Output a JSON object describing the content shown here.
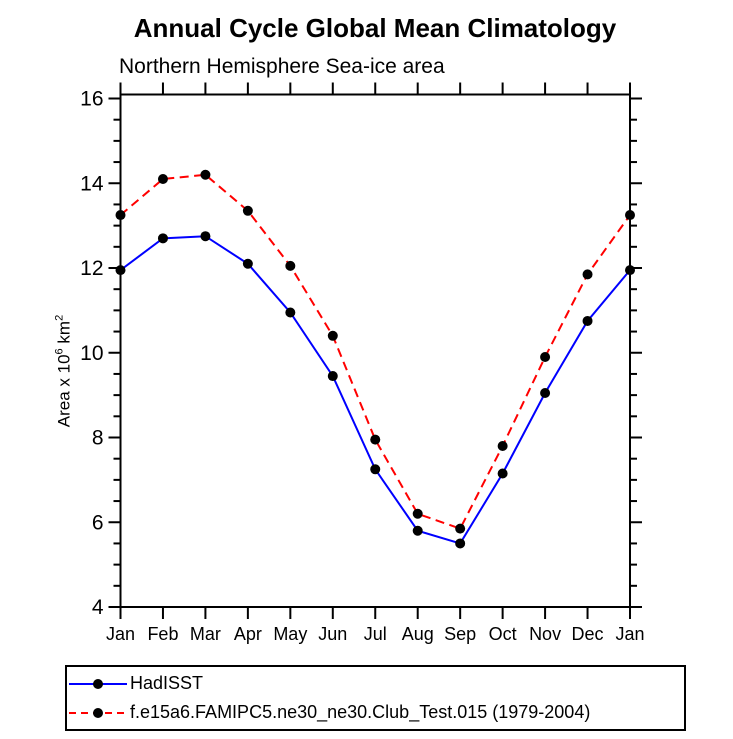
{
  "page": {
    "background_color": "#ffffff",
    "frame_color": "#000000"
  },
  "chart_data": {
    "type": "line",
    "title": "Annual Cycle Global Mean Climatology",
    "subtitle": "Northern Hemisphere Sea-ice area",
    "ylabel": "Area x 10^6 km^2",
    "ylabel_parts": {
      "base": "Area x 10",
      "exp": "6",
      "unit": " km",
      "unit_exp": "2"
    },
    "categories": [
      "Jan",
      "Feb",
      "Mar",
      "Apr",
      "May",
      "Jun",
      "Jul",
      "Aug",
      "Sep",
      "Oct",
      "Nov",
      "Dec",
      "Jan"
    ],
    "yticks": [
      4,
      6,
      8,
      10,
      12,
      14,
      16
    ],
    "ylim": [
      4,
      16
    ],
    "y_minor_step": 0.5,
    "grid": false,
    "legend_position": "bottom-left-box",
    "series": [
      {
        "name": "HadISST",
        "color": "#0000ff",
        "line_style": "solid",
        "marker": "filled-circle",
        "marker_color": "#000000",
        "values": [
          11.95,
          12.7,
          12.75,
          12.1,
          10.95,
          9.45,
          7.25,
          5.8,
          5.5,
          7.15,
          9.05,
          10.75,
          11.95
        ]
      },
      {
        "name": "f.e15a6.FAMIPC5.ne30_ne30.Club_Test.015 (1979-2004)",
        "color": "#ff0000",
        "line_style": "dashed",
        "marker": "filled-circle",
        "marker_color": "#000000",
        "values": [
          13.25,
          14.1,
          14.2,
          13.35,
          12.05,
          10.4,
          7.95,
          6.2,
          5.85,
          7.8,
          9.9,
          11.85,
          13.25
        ]
      }
    ]
  }
}
